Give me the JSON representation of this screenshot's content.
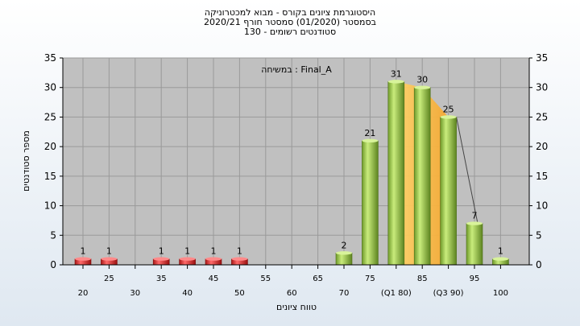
{
  "header": {
    "title_line_1": "היסטוגרמת ציונים בקורס - מבוא למכטרוניקה",
    "title_line_2": "בסמסטר  (01/2020)  סמסטר חורף  2020/21",
    "title_line_3": "סטודנטים רשומים - 130"
  },
  "chart_data": {
    "type": "bar",
    "annotation": "במשיחה : Final_A",
    "xlabel": "טווח ציונים",
    "ylabel": "מספר סטודנטים",
    "ylim": [
      0,
      35
    ],
    "yticks": [
      0,
      5,
      10,
      15,
      20,
      25,
      30,
      35
    ],
    "xticks": [
      {
        "value": 20,
        "label": "20"
      },
      {
        "value": 25,
        "label": "25"
      },
      {
        "value": 30,
        "label": "30"
      },
      {
        "value": 35,
        "label": "35"
      },
      {
        "value": 40,
        "label": "40"
      },
      {
        "value": 45,
        "label": "45"
      },
      {
        "value": 50,
        "label": "50"
      },
      {
        "value": 55,
        "label": "55"
      },
      {
        "value": 60,
        "label": "60"
      },
      {
        "value": 65,
        "label": "65"
      },
      {
        "value": 70,
        "label": "70"
      },
      {
        "value": 75,
        "label": "75"
      },
      {
        "value": 80,
        "label": "(Q1 80)"
      },
      {
        "value": 85,
        "label": "85"
      },
      {
        "value": 90,
        "label": "(Q3 90)"
      },
      {
        "value": 95,
        "label": "95"
      },
      {
        "value": 100,
        "label": "100"
      }
    ],
    "bars": [
      {
        "x": 20,
        "value": 1,
        "color": "red"
      },
      {
        "x": 25,
        "value": 1,
        "color": "red"
      },
      {
        "x": 35,
        "value": 1,
        "color": "red"
      },
      {
        "x": 40,
        "value": 1,
        "color": "red"
      },
      {
        "x": 45,
        "value": 1,
        "color": "red"
      },
      {
        "x": 50,
        "value": 1,
        "color": "red"
      },
      {
        "x": 70,
        "value": 2,
        "color": "green"
      },
      {
        "x": 75,
        "value": 21,
        "color": "green"
      },
      {
        "x": 80,
        "value": 31,
        "color": "green"
      },
      {
        "x": 85,
        "value": 30,
        "color": "green"
      },
      {
        "x": 90,
        "value": 25,
        "color": "green"
      },
      {
        "x": 95,
        "value": 7,
        "color": "green"
      },
      {
        "x": 100,
        "value": 1,
        "color": "green"
      }
    ],
    "highlight_range": [
      80,
      90
    ],
    "grid": true,
    "colors": {
      "plot_background": "#c0c0c0",
      "red_bar": "#e03030",
      "green_bar": "#9acd4a",
      "highlight": "#ffc04c"
    }
  }
}
